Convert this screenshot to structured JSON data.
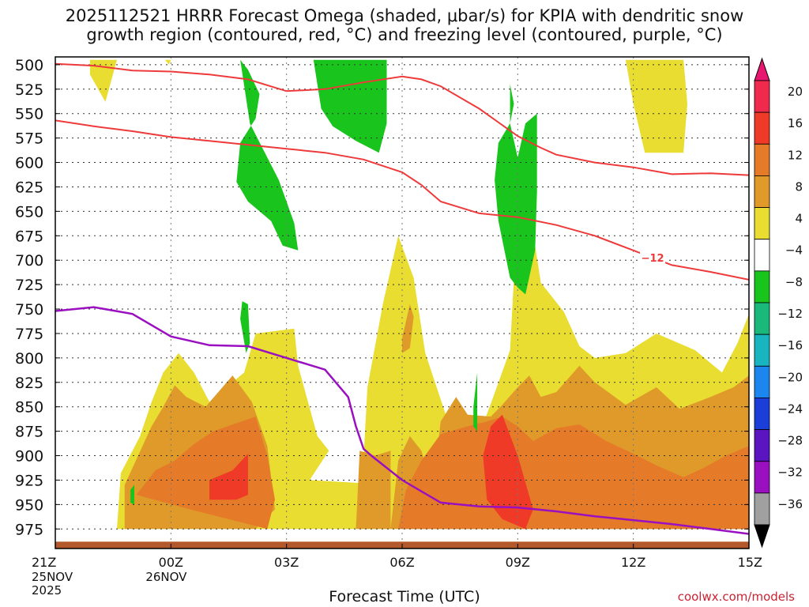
{
  "chart_data": {
    "type": "heatmap",
    "title_line1": "2025112521 HRRR Forecast Omega (shaded, μbar/s) for KPIA with dendritic snow",
    "title_line2": "growth region (contoured, red, °C) and freezing level (contoured, purple, °C)",
    "xlabel": "Forecast Time (UTC)",
    "credit": "coolwx.com/models",
    "x_ticks": [
      {
        "hour": 0,
        "label": "21Z"
      },
      {
        "hour": 3,
        "label": "00Z"
      },
      {
        "hour": 6,
        "label": "03Z"
      },
      {
        "hour": 9,
        "label": "06Z"
      },
      {
        "hour": 12,
        "label": "09Z"
      },
      {
        "hour": 15,
        "label": "12Z"
      },
      {
        "hour": 18,
        "label": "15Z"
      }
    ],
    "date_labels": [
      {
        "hour": 0,
        "lines": [
          "25NOV",
          "2025"
        ]
      },
      {
        "hour": 3,
        "lines": [
          "26NOV"
        ]
      }
    ],
    "xlim": [
      0,
      18
    ],
    "y_ticks": [
      500,
      525,
      550,
      575,
      600,
      625,
      650,
      675,
      700,
      725,
      750,
      775,
      800,
      825,
      850,
      875,
      900,
      925,
      950,
      975
    ],
    "ylim": [
      492,
      995
    ],
    "y_unit": "hPa",
    "ground_level_hpa": 988,
    "colorbar": {
      "labels": [
        "20",
        "16",
        "12",
        "8",
        "4",
        "−4",
        "−8",
        "−12",
        "−16",
        "−20",
        "−24",
        "−28",
        "−32",
        "−36"
      ],
      "colors": [
        "#f02a4c",
        "#ee3a26",
        "#e57a28",
        "#df9a2a",
        "#e8dd30",
        "#ffffff",
        "#19c41c",
        "#1ab87a",
        "#18b4c0",
        "#1a86ee",
        "#1b3ed8",
        "#5a14c0",
        "#9a10c0",
        "#a0a0a0"
      ],
      "top_cap_color": "#e8166e",
      "bottom_cap_color": "#000000"
    },
    "shaded_regions": [
      {
        "level": 4,
        "color": "#e8dd30",
        "points": [
          [
            0.9,
            495
          ],
          [
            1.6,
            495
          ],
          [
            1.3,
            538
          ],
          [
            0.9,
            510
          ]
        ]
      },
      {
        "level": 4,
        "color": "#e8dd30",
        "points": [
          [
            2.85,
            495
          ],
          [
            3.0,
            495
          ],
          [
            2.95,
            500
          ]
        ]
      },
      {
        "level": 4,
        "color": "#e8dd30",
        "points": [
          [
            14.8,
            495
          ],
          [
            16.3,
            495
          ],
          [
            16.4,
            540
          ],
          [
            16.3,
            590
          ],
          [
            15.3,
            590
          ],
          [
            15.0,
            540
          ]
        ]
      },
      {
        "level": 4,
        "color": "#e8dd30",
        "points": [
          [
            1.6,
            975
          ],
          [
            1.7,
            918
          ],
          [
            2.2,
            880
          ],
          [
            2.5,
            845
          ],
          [
            2.8,
            815
          ],
          [
            3.2,
            795
          ],
          [
            3.6,
            815
          ],
          [
            4.0,
            845
          ],
          [
            4.5,
            828
          ],
          [
            4.9,
            815
          ],
          [
            5.2,
            775
          ],
          [
            6.2,
            770
          ],
          [
            6.3,
            808
          ],
          [
            6.8,
            880
          ],
          [
            7.1,
            895
          ],
          [
            6.6,
            925
          ],
          [
            7.9,
            928
          ],
          [
            8.3,
            948
          ],
          [
            7.9,
            975
          ],
          [
            8.1,
            830
          ],
          [
            8.5,
            745
          ],
          [
            8.9,
            675
          ],
          [
            9.3,
            718
          ],
          [
            9.6,
            795
          ],
          [
            10.3,
            878
          ],
          [
            10.6,
            923
          ],
          [
            11.0,
            878
          ],
          [
            11.3,
            847
          ],
          [
            11.8,
            792
          ],
          [
            11.9,
            718
          ],
          [
            12.0,
            618
          ],
          [
            12.4,
            672
          ],
          [
            12.6,
            723
          ],
          [
            13.2,
            753
          ],
          [
            13.6,
            788
          ],
          [
            14.0,
            800
          ],
          [
            14.8,
            795
          ],
          [
            15.6,
            775
          ],
          [
            16.6,
            792
          ],
          [
            17.3,
            815
          ],
          [
            17.7,
            785
          ],
          [
            18.0,
            755
          ],
          [
            18.0,
            975
          ]
        ]
      },
      {
        "level": 8,
        "color": "#df9a2a",
        "points": [
          [
            1.8,
            975
          ],
          [
            1.8,
            930
          ],
          [
            2.5,
            870
          ],
          [
            2.8,
            850
          ],
          [
            3.1,
            828
          ],
          [
            3.4,
            840
          ],
          [
            3.9,
            850
          ],
          [
            4.6,
            818
          ],
          [
            5.1,
            845
          ],
          [
            5.5,
            890
          ],
          [
            5.7,
            955
          ],
          [
            5.2,
            975
          ]
        ]
      },
      {
        "level": 8,
        "color": "#df9a2a",
        "points": [
          [
            7.8,
            975
          ],
          [
            7.9,
            895
          ],
          [
            8.3,
            900
          ],
          [
            8.7,
            895
          ],
          [
            8.7,
            975
          ]
        ]
      },
      {
        "level": 8,
        "color": "#df9a2a",
        "points": [
          [
            8.7,
            975
          ],
          [
            8.9,
            905
          ],
          [
            9.2,
            880
          ],
          [
            9.5,
            895
          ],
          [
            9.8,
            935
          ],
          [
            10.0,
            865
          ],
          [
            10.4,
            840
          ],
          [
            10.7,
            858
          ],
          [
            11.3,
            860
          ],
          [
            11.6,
            848
          ],
          [
            12.0,
            830
          ],
          [
            12.3,
            818
          ],
          [
            12.6,
            840
          ],
          [
            13.0,
            835
          ],
          [
            13.6,
            808
          ],
          [
            14.0,
            825
          ],
          [
            14.8,
            848
          ],
          [
            15.6,
            830
          ],
          [
            16.2,
            852
          ],
          [
            17.0,
            840
          ],
          [
            17.6,
            830
          ],
          [
            18.0,
            818
          ],
          [
            18.0,
            975
          ]
        ]
      },
      {
        "level": 8,
        "color": "#df9a2a",
        "points": [
          [
            9.0,
            780
          ],
          [
            9.2,
            745
          ],
          [
            9.3,
            758
          ],
          [
            9.2,
            790
          ],
          [
            9.0,
            795
          ]
        ]
      },
      {
        "level": 12,
        "color": "#e57a28",
        "points": [
          [
            2.1,
            940
          ],
          [
            2.6,
            915
          ],
          [
            3.1,
            905
          ],
          [
            3.6,
            888
          ],
          [
            4.1,
            875
          ],
          [
            5.2,
            860
          ],
          [
            5.5,
            900
          ],
          [
            5.7,
            945
          ],
          [
            5.5,
            975
          ],
          [
            3.5,
            955
          ]
        ]
      },
      {
        "level": 12,
        "color": "#e57a28",
        "points": [
          [
            8.9,
            975
          ],
          [
            9.1,
            935
          ],
          [
            9.5,
            905
          ],
          [
            10.0,
            878
          ],
          [
            10.7,
            870
          ],
          [
            11.2,
            865
          ],
          [
            11.6,
            860
          ],
          [
            12.0,
            870
          ],
          [
            12.4,
            885
          ],
          [
            13.0,
            872
          ],
          [
            13.6,
            868
          ],
          [
            14.3,
            885
          ],
          [
            15.0,
            898
          ],
          [
            15.6,
            910
          ],
          [
            16.3,
            922
          ],
          [
            16.8,
            913
          ],
          [
            17.4,
            900
          ],
          [
            18.0,
            890
          ],
          [
            18.0,
            975
          ]
        ]
      },
      {
        "level": 16,
        "color": "#ee3a26",
        "points": [
          [
            11.3,
            870
          ],
          [
            11.6,
            858
          ],
          [
            12.0,
            900
          ],
          [
            12.4,
            955
          ],
          [
            12.2,
            975
          ],
          [
            11.6,
            965
          ],
          [
            11.2,
            945
          ],
          [
            11.1,
            900
          ]
        ]
      },
      {
        "level": 16,
        "color": "#ee3a26",
        "points": [
          [
            4.0,
            925
          ],
          [
            4.6,
            915
          ],
          [
            5.0,
            898
          ],
          [
            5.0,
            940
          ],
          [
            4.7,
            945
          ],
          [
            4.0,
            945
          ]
        ]
      },
      {
        "level": -4,
        "color": "#19c41c",
        "points": [
          [
            4.8,
            495
          ],
          [
            5.05,
            560
          ],
          [
            5.8,
            618
          ],
          [
            6.2,
            662
          ],
          [
            6.3,
            690
          ],
          [
            5.9,
            685
          ],
          [
            5.6,
            660
          ],
          [
            5.0,
            640
          ],
          [
            4.7,
            620
          ],
          [
            4.8,
            580
          ],
          [
            5.2,
            555
          ],
          [
            5.3,
            530
          ],
          [
            5.0,
            505
          ]
        ]
      },
      {
        "level": -4,
        "color": "#19c41c",
        "points": [
          [
            6.7,
            495
          ],
          [
            8.6,
            495
          ],
          [
            8.6,
            560
          ],
          [
            8.4,
            590
          ],
          [
            7.8,
            578
          ],
          [
            7.2,
            563
          ],
          [
            6.9,
            545
          ]
        ]
      },
      {
        "level": -4,
        "color": "#19c41c",
        "points": [
          [
            11.4,
            618
          ],
          [
            11.5,
            580
          ],
          [
            11.8,
            560
          ],
          [
            12.0,
            595
          ],
          [
            12.2,
            560
          ],
          [
            12.5,
            550
          ],
          [
            12.5,
            630
          ],
          [
            12.45,
            690
          ],
          [
            12.2,
            735
          ],
          [
            12.0,
            728
          ],
          [
            11.8,
            718
          ],
          [
            11.5,
            660
          ]
        ]
      },
      {
        "level": -4,
        "color": "#19c41c",
        "points": [
          [
            11.8,
            520
          ],
          [
            11.9,
            540
          ],
          [
            11.8,
            560
          ]
        ]
      },
      {
        "level": -4,
        "color": "#19c41c",
        "points": [
          [
            4.8,
            760
          ],
          [
            4.95,
            795
          ],
          [
            5.05,
            785
          ],
          [
            5.0,
            745
          ],
          [
            4.85,
            742
          ]
        ]
      },
      {
        "level": -4,
        "color": "#19c41c",
        "points": [
          [
            10.85,
            850
          ],
          [
            10.95,
            815
          ],
          [
            10.95,
            875
          ],
          [
            10.85,
            870
          ]
        ]
      },
      {
        "level": -4,
        "color": "#19c41c",
        "points": [
          [
            1.95,
            935
          ],
          [
            2.05,
            930
          ],
          [
            2.05,
            950
          ],
          [
            1.95,
            948
          ]
        ]
      }
    ],
    "dgz_lines": [
      {
        "points": [
          [
            0,
            499
          ],
          [
            1,
            501
          ],
          [
            2,
            506
          ],
          [
            3,
            507
          ],
          [
            4,
            510
          ],
          [
            5,
            515
          ],
          [
            6,
            527
          ],
          [
            7,
            525
          ],
          [
            8,
            518
          ],
          [
            9,
            512
          ],
          [
            9.5,
            515
          ],
          [
            10,
            522
          ],
          [
            11,
            545
          ],
          [
            12,
            573
          ],
          [
            12.6,
            585
          ],
          [
            13,
            592
          ],
          [
            14,
            600
          ],
          [
            15,
            605
          ],
          [
            16,
            612
          ],
          [
            17,
            611
          ],
          [
            18,
            613
          ]
        ],
        "label": null
      },
      {
        "points": [
          [
            0,
            557
          ],
          [
            1,
            563
          ],
          [
            2,
            568
          ],
          [
            3,
            574
          ],
          [
            4,
            578
          ],
          [
            5,
            582
          ],
          [
            6,
            586
          ],
          [
            7,
            590
          ],
          [
            8,
            597
          ],
          [
            9,
            610
          ],
          [
            9.5,
            623
          ],
          [
            10,
            640
          ],
          [
            11,
            652
          ],
          [
            12,
            656
          ],
          [
            13,
            664
          ],
          [
            14,
            675
          ],
          [
            15,
            690
          ],
          [
            16,
            705
          ],
          [
            17,
            712
          ],
          [
            18,
            720
          ]
        ],
        "label": "−12",
        "label_hour": 15.5
      }
    ],
    "freezing_level": [
      [
        0,
        752
      ],
      [
        1,
        748
      ],
      [
        2,
        755
      ],
      [
        3,
        778
      ],
      [
        4,
        787
      ],
      [
        5,
        788
      ],
      [
        6,
        800
      ],
      [
        7,
        812
      ],
      [
        7.6,
        840
      ],
      [
        7.8,
        870
      ],
      [
        8.0,
        893
      ],
      [
        8.2,
        900
      ],
      [
        9,
        925
      ],
      [
        10,
        948
      ],
      [
        11,
        952
      ],
      [
        12,
        953
      ],
      [
        13,
        957
      ],
      [
        14,
        962
      ],
      [
        15,
        966
      ],
      [
        16,
        970
      ],
      [
        17,
        975
      ],
      [
        18,
        980
      ]
    ]
  }
}
